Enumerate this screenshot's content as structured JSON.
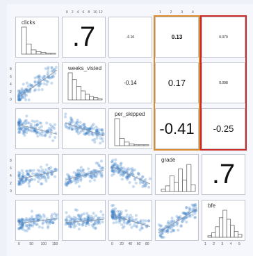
{
  "colors": {
    "highlight_orange": "#d98a2b",
    "highlight_red": "#cc2a2a",
    "point": "#3b7fc4",
    "hist_stroke": "#555555"
  },
  "chart_data": {
    "type": "scatter",
    "variables": [
      "clicks",
      "weeks_visited",
      "per_skipped",
      "grade",
      "bfe"
    ],
    "diagonal_labels": [
      "clicks",
      "weeks_visted",
      "per_skipped",
      "grade",
      "bfe"
    ],
    "correlations": [
      {
        "row": 0,
        "col": 1,
        "text": ".7",
        "size": "huge"
      },
      {
        "row": 0,
        "col": 2,
        "text": "-0.10",
        "size": "tiny"
      },
      {
        "row": 0,
        "col": 3,
        "text": "0.13",
        "size": "small"
      },
      {
        "row": 0,
        "col": 4,
        "text": "0.079",
        "size": "tiny"
      },
      {
        "row": 1,
        "col": 2,
        "text": "-0.14",
        "size": "small"
      },
      {
        "row": 1,
        "col": 3,
        "text": "0.17",
        "size": "medium"
      },
      {
        "row": 1,
        "col": 4,
        "text": "0.098",
        "size": "tiny"
      },
      {
        "row": 2,
        "col": 3,
        "text": "-0.41",
        "size": "large"
      },
      {
        "row": 2,
        "col": 4,
        "text": "-0.25",
        "size": "medium"
      },
      {
        "row": 3,
        "col": 4,
        "text": ".7",
        "size": "huge"
      }
    ],
    "histograms": [
      [
        32,
        12,
        5,
        3,
        2,
        1,
        1
      ],
      [
        24,
        18,
        12,
        8,
        5,
        3,
        2,
        1
      ],
      [
        30,
        8,
        4,
        2,
        1,
        1,
        1
      ],
      [
        2,
        5,
        14,
        8,
        20,
        10,
        24,
        6
      ],
      [
        1,
        3,
        7,
        13,
        18,
        12,
        8,
        4,
        2
      ]
    ],
    "trend_direction": [
      [
        null,
        null,
        null,
        null,
        null
      ],
      [
        0.85,
        null,
        null,
        null,
        null
      ],
      [
        -0.3,
        -0.4,
        null,
        null,
        null
      ],
      [
        0.25,
        0.3,
        -0.55,
        null,
        null
      ],
      [
        0.15,
        0.1,
        -0.35,
        0.75,
        null
      ]
    ],
    "top_tick_labels": {
      "col1": [
        "0",
        "2",
        "4",
        "6",
        "8",
        "10",
        "12"
      ],
      "col3": [
        "1",
        "2",
        "3",
        "4"
      ]
    },
    "bottom_tick_labels": {
      "col0": [
        "0",
        "50",
        "100",
        "150"
      ],
      "col2": [
        "0",
        "20",
        "40",
        "60",
        "80"
      ],
      "col4": [
        "1",
        "2",
        "3",
        "4",
        "5"
      ]
    },
    "highlighted_columns": [
      3,
      4
    ]
  }
}
